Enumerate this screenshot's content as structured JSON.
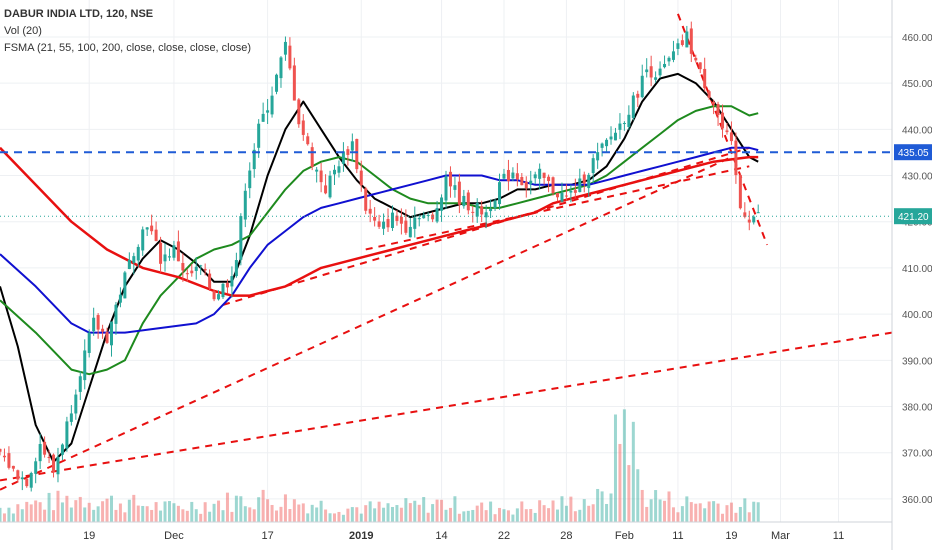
{
  "legend": {
    "symbol_line": "DABUR INDIA LTD, 120, NSE",
    "vol_line": "Vol (20)",
    "fsma_line": "FSMA (21, 55, 100, 200, close, close, close, close)"
  },
  "chart_data": {
    "type": "candlestick",
    "title": "DABUR INDIA LTD, 120, NSE",
    "ylim": [
      355,
      468
    ],
    "xlim": [
      0,
      100
    ],
    "price_ticks": [
      360,
      370,
      380,
      390,
      400,
      410,
      420,
      430,
      440,
      450,
      460
    ],
    "x_ticks": [
      {
        "x": 10,
        "label": "19"
      },
      {
        "x": 19.5,
        "label": "Dec"
      },
      {
        "x": 30,
        "label": "17"
      },
      {
        "x": 40.5,
        "label": "2019",
        "bold": true
      },
      {
        "x": 49.5,
        "label": "14"
      },
      {
        "x": 56.5,
        "label": "22"
      },
      {
        "x": 63.5,
        "label": "28"
      },
      {
        "x": 70,
        "label": "Feb"
      },
      {
        "x": 76,
        "label": "11"
      },
      {
        "x": 82,
        "label": "19"
      },
      {
        "x": 87.5,
        "label": "Mar"
      },
      {
        "x": 94,
        "label": "11"
      }
    ],
    "grid": true,
    "horizontal_level": {
      "price": 435.05,
      "label": "435.05",
      "color": "#1f5bd6"
    },
    "last_price": {
      "price": 421.2,
      "label": "421.20",
      "color": "#26a69a"
    },
    "candle_colors": {
      "up": "#26a69a",
      "down": "#ef5350"
    },
    "price_path": [
      [
        0,
        370
      ],
      [
        1.5,
        366
      ],
      [
        3,
        364
      ],
      [
        4.5,
        372
      ],
      [
        6,
        366
      ],
      [
        7.5,
        376
      ],
      [
        9,
        388
      ],
      [
        10.5,
        398
      ],
      [
        12,
        395
      ],
      [
        13.5,
        405
      ],
      [
        15,
        414
      ],
      [
        16.5,
        420
      ],
      [
        18,
        412
      ],
      [
        19.5,
        414
      ],
      [
        21,
        408
      ],
      [
        22.5,
        410
      ],
      [
        24,
        404
      ],
      [
        25.5,
        407
      ],
      [
        26.5,
        412
      ],
      [
        27.5,
        428
      ],
      [
        29,
        440
      ],
      [
        30.5,
        448
      ],
      [
        32,
        458
      ],
      [
        33.5,
        442
      ],
      [
        35,
        433
      ],
      [
        36.5,
        427
      ],
      [
        38,
        433
      ],
      [
        39.5,
        437
      ],
      [
        41,
        423
      ],
      [
        42.5,
        418
      ],
      [
        44,
        421
      ],
      [
        45.5,
        419
      ],
      [
        47,
        422
      ],
      [
        48.5,
        420
      ],
      [
        50,
        430
      ],
      [
        51.5,
        425
      ],
      [
        53,
        423
      ],
      [
        54.5,
        422
      ],
      [
        56,
        428
      ],
      [
        57.5,
        431
      ],
      [
        59,
        428
      ],
      [
        60.5,
        430
      ],
      [
        62,
        427
      ],
      [
        63.5,
        425
      ],
      [
        65,
        428
      ],
      [
        66.5,
        433
      ],
      [
        68,
        437
      ],
      [
        69.5,
        441
      ],
      [
        71,
        446
      ],
      [
        72.5,
        453
      ],
      [
        74,
        452
      ],
      [
        75.5,
        456
      ],
      [
        77,
        460
      ],
      [
        78.5,
        452
      ],
      [
        80,
        446
      ],
      [
        81,
        440
      ],
      [
        82,
        436
      ],
      [
        83,
        423
      ],
      [
        84,
        421
      ],
      [
        85,
        421.2
      ]
    ],
    "volume_path": [
      [
        0,
        3
      ],
      [
        5,
        4
      ],
      [
        9,
        5
      ],
      [
        14,
        4
      ],
      [
        19,
        3
      ],
      [
        24,
        4
      ],
      [
        29,
        5
      ],
      [
        34,
        4
      ],
      [
        39,
        3
      ],
      [
        44,
        3
      ],
      [
        49,
        4
      ],
      [
        54,
        3
      ],
      [
        59,
        3
      ],
      [
        64,
        4
      ],
      [
        68,
        5
      ],
      [
        70,
        25
      ],
      [
        72,
        6
      ],
      [
        76,
        4
      ],
      [
        80,
        4
      ],
      [
        85,
        3
      ]
    ],
    "series": [
      {
        "name": "FSMA 21",
        "color": "#000000",
        "values": [
          [
            0,
            406
          ],
          [
            2,
            393
          ],
          [
            4,
            376
          ],
          [
            6,
            368
          ],
          [
            8,
            372
          ],
          [
            10,
            384
          ],
          [
            12,
            396
          ],
          [
            14,
            406
          ],
          [
            16,
            412
          ],
          [
            18,
            416
          ],
          [
            20,
            414
          ],
          [
            22,
            411
          ],
          [
            24,
            407
          ],
          [
            26,
            407
          ],
          [
            28,
            417
          ],
          [
            30,
            430
          ],
          [
            32,
            440
          ],
          [
            34,
            446
          ],
          [
            36,
            440
          ],
          [
            38,
            434
          ],
          [
            40,
            429
          ],
          [
            42,
            425
          ],
          [
            44,
            423
          ],
          [
            46,
            421
          ],
          [
            48,
            422
          ],
          [
            50,
            423
          ],
          [
            52,
            424
          ],
          [
            54,
            424
          ],
          [
            56,
            425
          ],
          [
            58,
            427
          ],
          [
            60,
            427
          ],
          [
            62,
            428
          ],
          [
            64,
            428
          ],
          [
            66,
            429
          ],
          [
            68,
            432
          ],
          [
            70,
            438
          ],
          [
            72,
            446
          ],
          [
            74,
            451
          ],
          [
            76,
            452
          ],
          [
            78,
            450
          ],
          [
            80,
            446
          ],
          [
            82,
            440
          ],
          [
            84,
            434
          ],
          [
            85,
            433
          ]
        ]
      },
      {
        "name": "FSMA 55",
        "color": "#1e8a1e",
        "values": [
          [
            0,
            403
          ],
          [
            4,
            396
          ],
          [
            8,
            388
          ],
          [
            10,
            387
          ],
          [
            12,
            388
          ],
          [
            14,
            390
          ],
          [
            16,
            398
          ],
          [
            18,
            404
          ],
          [
            20,
            408
          ],
          [
            22,
            412
          ],
          [
            24,
            414
          ],
          [
            26,
            415
          ],
          [
            28,
            417
          ],
          [
            30,
            422
          ],
          [
            32,
            427
          ],
          [
            34,
            431
          ],
          [
            36,
            433
          ],
          [
            38,
            434
          ],
          [
            40,
            433
          ],
          [
            42,
            430
          ],
          [
            44,
            427
          ],
          [
            46,
            425
          ],
          [
            48,
            424
          ],
          [
            50,
            424
          ],
          [
            52,
            424
          ],
          [
            54,
            423
          ],
          [
            56,
            423
          ],
          [
            58,
            424
          ],
          [
            60,
            425
          ],
          [
            62,
            426
          ],
          [
            64,
            427
          ],
          [
            66,
            428
          ],
          [
            68,
            430
          ],
          [
            70,
            433
          ],
          [
            72,
            436
          ],
          [
            74,
            439
          ],
          [
            76,
            442
          ],
          [
            78,
            444
          ],
          [
            80,
            445
          ],
          [
            82,
            445
          ],
          [
            84,
            443
          ],
          [
            85,
            443.5
          ]
        ]
      },
      {
        "name": "FSMA 100",
        "color": "#1010d0",
        "values": [
          [
            0,
            413
          ],
          [
            4,
            406
          ],
          [
            8,
            398
          ],
          [
            10,
            396
          ],
          [
            14,
            396
          ],
          [
            18,
            397
          ],
          [
            22,
            398
          ],
          [
            24,
            400
          ],
          [
            26,
            404
          ],
          [
            28,
            410
          ],
          [
            30,
            415
          ],
          [
            32,
            418
          ],
          [
            34,
            421
          ],
          [
            36,
            423
          ],
          [
            38,
            424
          ],
          [
            40,
            425
          ],
          [
            42,
            426
          ],
          [
            44,
            427
          ],
          [
            46,
            428
          ],
          [
            48,
            429
          ],
          [
            50,
            430
          ],
          [
            52,
            430
          ],
          [
            54,
            430
          ],
          [
            56,
            429
          ],
          [
            58,
            429
          ],
          [
            60,
            428
          ],
          [
            62,
            428
          ],
          [
            64,
            428
          ],
          [
            66,
            428
          ],
          [
            68,
            429
          ],
          [
            70,
            430
          ],
          [
            72,
            431
          ],
          [
            74,
            432
          ],
          [
            76,
            433
          ],
          [
            78,
            434
          ],
          [
            80,
            435
          ],
          [
            82,
            436
          ],
          [
            84,
            436
          ],
          [
            85,
            435.5
          ]
        ]
      },
      {
        "name": "FSMA 200",
        "color": "#e81010",
        "values": [
          [
            0,
            436
          ],
          [
            4,
            428
          ],
          [
            8,
            420
          ],
          [
            12,
            414
          ],
          [
            16,
            410
          ],
          [
            20,
            408
          ],
          [
            24,
            405
          ],
          [
            26,
            404
          ],
          [
            28,
            404
          ],
          [
            30,
            405
          ],
          [
            32,
            406
          ],
          [
            34,
            408
          ],
          [
            36,
            410
          ],
          [
            38,
            411
          ],
          [
            40,
            412
          ],
          [
            42,
            413
          ],
          [
            44,
            414
          ],
          [
            46,
            415
          ],
          [
            48,
            416
          ],
          [
            50,
            417
          ],
          [
            52,
            418
          ],
          [
            54,
            419
          ],
          [
            56,
            420
          ],
          [
            58,
            421
          ],
          [
            60,
            422
          ],
          [
            62,
            424
          ],
          [
            64,
            425
          ],
          [
            66,
            426
          ],
          [
            68,
            427
          ],
          [
            70,
            428
          ],
          [
            72,
            429
          ],
          [
            74,
            430
          ],
          [
            76,
            431
          ],
          [
            78,
            432
          ],
          [
            80,
            433
          ],
          [
            82,
            433.5
          ],
          [
            84,
            434
          ],
          [
            85,
            434
          ]
        ]
      }
    ],
    "trendlines": [
      {
        "from": [
          0,
          364
        ],
        "to": [
          100,
          396
        ],
        "color": "#e81010",
        "dash": true
      },
      {
        "from": [
          0,
          362
        ],
        "to": [
          82,
          434
        ],
        "color": "#e81010",
        "dash": true
      },
      {
        "from": [
          25,
          402
        ],
        "to": [
          84,
          436
        ],
        "color": "#e81010",
        "dash": true
      },
      {
        "from": [
          41,
          414
        ],
        "to": [
          84,
          432
        ],
        "color": "#e81010",
        "dash": true
      },
      {
        "from": [
          76,
          465
        ],
        "to": [
          86,
          415
        ],
        "color": "#e81010",
        "dash": true
      }
    ]
  }
}
